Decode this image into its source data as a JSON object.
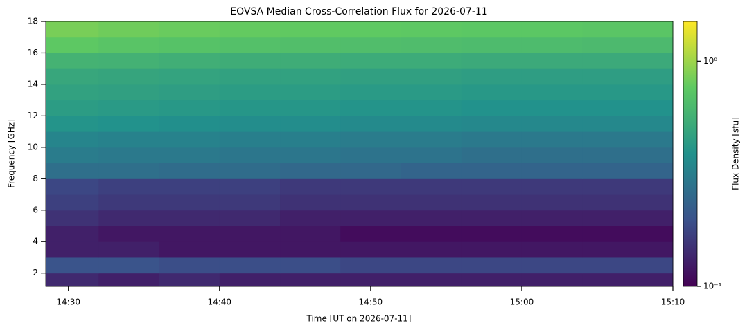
{
  "chart_data": {
    "type": "heatmap",
    "title": "EOVSA Median Cross-Correlation Flux for 2026-07-11",
    "x_label": "Time [UT on 2026-07-11]",
    "y_label": "Frequency [GHz]",
    "colorbar_label": "Flux Density [sfu]",
    "colormap": "viridis",
    "color_scale": "log",
    "x_edges": [
      28.5,
      32,
      36,
      40,
      44,
      48,
      52,
      56,
      60,
      64,
      70
    ],
    "y_edges": [
      1.15,
      2,
      3,
      4,
      5,
      6,
      7,
      8,
      9,
      10,
      11,
      12,
      13,
      14,
      15,
      16,
      17,
      18
    ],
    "z": [
      [
        0.14,
        0.13,
        0.14,
        0.13,
        0.13,
        0.13,
        0.13,
        0.13,
        0.13,
        0.13
      ],
      [
        0.2,
        0.2,
        0.19,
        0.19,
        0.19,
        0.18,
        0.18,
        0.18,
        0.18,
        0.18
      ],
      [
        0.13,
        0.13,
        0.12,
        0.12,
        0.12,
        0.12,
        0.12,
        0.12,
        0.12,
        0.12
      ],
      [
        0.13,
        0.12,
        0.12,
        0.12,
        0.12,
        0.11,
        0.11,
        0.11,
        0.11,
        0.11
      ],
      [
        0.15,
        0.14,
        0.14,
        0.14,
        0.13,
        0.13,
        0.13,
        0.13,
        0.13,
        0.13
      ],
      [
        0.17,
        0.16,
        0.16,
        0.16,
        0.15,
        0.15,
        0.15,
        0.15,
        0.15,
        0.15
      ],
      [
        0.18,
        0.17,
        0.17,
        0.17,
        0.16,
        0.16,
        0.16,
        0.16,
        0.16,
        0.16
      ],
      [
        0.27,
        0.27,
        0.26,
        0.26,
        0.25,
        0.25,
        0.24,
        0.24,
        0.24,
        0.24
      ],
      [
        0.31,
        0.3,
        0.3,
        0.29,
        0.29,
        0.28,
        0.28,
        0.27,
        0.27,
        0.27
      ],
      [
        0.34,
        0.33,
        0.33,
        0.32,
        0.32,
        0.31,
        0.31,
        0.3,
        0.3,
        0.3
      ],
      [
        0.4,
        0.39,
        0.38,
        0.37,
        0.37,
        0.36,
        0.36,
        0.35,
        0.35,
        0.35
      ],
      [
        0.44,
        0.43,
        0.42,
        0.41,
        0.41,
        0.4,
        0.4,
        0.39,
        0.39,
        0.39
      ],
      [
        0.47,
        0.46,
        0.45,
        0.44,
        0.44,
        0.43,
        0.43,
        0.42,
        0.42,
        0.42
      ],
      [
        0.5,
        0.49,
        0.48,
        0.47,
        0.47,
        0.46,
        0.46,
        0.45,
        0.45,
        0.45
      ],
      [
        0.58,
        0.57,
        0.55,
        0.54,
        0.54,
        0.53,
        0.53,
        0.52,
        0.52,
        0.52
      ],
      [
        0.75,
        0.72,
        0.7,
        0.68,
        0.67,
        0.66,
        0.65,
        0.64,
        0.64,
        0.63
      ],
      [
        0.85,
        0.82,
        0.8,
        0.78,
        0.77,
        0.76,
        0.75,
        0.74,
        0.74,
        0.73
      ]
    ],
    "xlim": [
      28.5,
      70
    ],
    "xticks": [
      {
        "value": 30,
        "label": "14:30"
      },
      {
        "value": 40,
        "label": "14:40"
      },
      {
        "value": 50,
        "label": "14:50"
      },
      {
        "value": 60,
        "label": "15:00"
      },
      {
        "value": 70,
        "label": "15:10"
      }
    ],
    "ylim": [
      1.15,
      18
    ],
    "yticks": [
      2,
      4,
      6,
      8,
      10,
      12,
      14,
      16,
      18
    ],
    "zlim": [
      0.1,
      1.5
    ],
    "zticks": [
      {
        "value": 0.1,
        "label": "10⁻¹"
      },
      {
        "value": 1,
        "label": "10⁰"
      }
    ]
  }
}
